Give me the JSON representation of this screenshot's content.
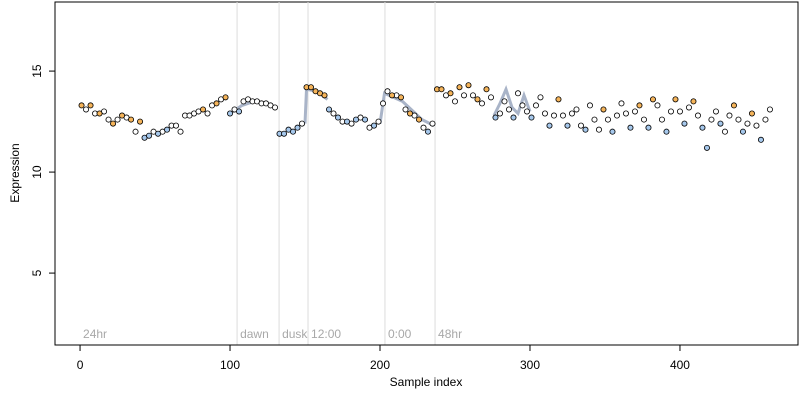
{
  "chart_data": {
    "type": "scatter",
    "xlabel": "Sample index",
    "ylabel": "Expression",
    "xlim": [
      -16.7,
      478.7
    ],
    "ylim": [
      1.44,
      18.42
    ],
    "xticks": [
      0,
      100,
      200,
      300,
      400
    ],
    "yticks": [
      5,
      10,
      15
    ],
    "annotations": [
      {
        "x": 0,
        "label": "24hr",
        "line": false
      },
      {
        "x": 104.7,
        "label": "dawn",
        "line": true
      },
      {
        "x": 132.7,
        "label": "dusk",
        "line": true
      },
      {
        "x": 152,
        "label": "12:00",
        "line": true
      },
      {
        "x": 203.3,
        "label": "0:00",
        "line": true
      },
      {
        "x": 236.7,
        "label": "48hr",
        "line": true
      }
    ],
    "trend": {
      "color": "#a9b4c8",
      "x": [
        100,
        108,
        116,
        124,
        131,
        132,
        150,
        151,
        158,
        165,
        166,
        200,
        203,
        215,
        228,
        236,
        237,
        276,
        280,
        284,
        288,
        292,
        296,
        300
      ],
      "values": [
        12.9,
        13.3,
        13.5,
        13.4,
        13.2,
        null,
        12.4,
        14.1,
        14.0,
        13.6,
        null,
        12.4,
        13.9,
        13.5,
        12.6,
        12.3,
        null,
        12.8,
        13.4,
        14.1,
        13.2,
        12.9,
        13.8,
        13.0
      ]
    },
    "series": [
      {
        "color": "#ffffff",
        "x": [
          4,
          10,
          16,
          19,
          25,
          31,
          37,
          49,
          55,
          61,
          64,
          67,
          70,
          73,
          76,
          79,
          85,
          88,
          94,
          103,
          109,
          112,
          115,
          118,
          121,
          124,
          127,
          130,
          148,
          169,
          175,
          181,
          187,
          193,
          199,
          202,
          205,
          211,
          217,
          223,
          229,
          235,
          244,
          250,
          256,
          262,
          268,
          274,
          280,
          283,
          286,
          292,
          295,
          298,
          304,
          307,
          310,
          316,
          322,
          328,
          331,
          334,
          340,
          343,
          346,
          352,
          358,
          361,
          364,
          370,
          376,
          385,
          388,
          394,
          400,
          406,
          412,
          421,
          424,
          430,
          433,
          439,
          445,
          451,
          457,
          460
        ],
        "values": [
          13.1,
          12.9,
          13.0,
          12.6,
          12.6,
          12.7,
          12.0,
          12.0,
          12.0,
          12.3,
          12.3,
          12.0,
          12.8,
          12.8,
          12.9,
          13.0,
          12.9,
          13.3,
          13.6,
          13.1,
          13.5,
          13.6,
          13.5,
          13.5,
          13.4,
          13.4,
          13.3,
          13.2,
          12.4,
          12.9,
          12.5,
          12.4,
          12.7,
          12.2,
          12.5,
          13.4,
          14.0,
          13.8,
          13.1,
          12.8,
          12.2,
          12.4,
          13.8,
          13.5,
          13.8,
          13.8,
          13.4,
          13.7,
          12.9,
          13.5,
          13.1,
          13.9,
          13.3,
          13.0,
          13.3,
          13.7,
          12.9,
          12.8,
          12.8,
          12.9,
          13.1,
          12.3,
          13.3,
          12.6,
          12.1,
          12.6,
          12.8,
          13.4,
          12.9,
          13.0,
          12.6,
          13.3,
          12.6,
          13.0,
          13.0,
          13.2,
          12.8,
          12.6,
          13.0,
          12.0,
          12.8,
          12.6,
          12.4,
          12.3,
          12.6,
          13.1
        ]
      },
      {
        "color": "#a6c8ec",
        "x": [
          43,
          46,
          52,
          58,
          100,
          106,
          133,
          136,
          139,
          142,
          145,
          166,
          172,
          178,
          184,
          190,
          196,
          232,
          277,
          289,
          301,
          313,
          325,
          337,
          355,
          367,
          379,
          391,
          403,
          415,
          418,
          427,
          442,
          454
        ],
        "values": [
          11.7,
          11.8,
          11.9,
          12.1,
          12.9,
          13.0,
          11.9,
          11.9,
          12.1,
          12.0,
          12.2,
          13.1,
          12.7,
          12.5,
          12.6,
          12.6,
          12.3,
          12.0,
          12.7,
          12.7,
          12.7,
          12.3,
          12.3,
          12.1,
          12.0,
          12.2,
          12.2,
          12.0,
          12.4,
          12.2,
          11.2,
          12.4,
          12.0,
          11.6
        ]
      },
      {
        "color": "#f5b45a",
        "x": [
          1,
          7,
          13,
          22,
          28,
          34,
          40,
          82,
          91,
          97,
          151,
          154,
          157,
          160,
          163,
          208,
          214,
          220,
          226,
          238,
          241,
          247,
          253,
          259,
          265,
          271,
          319,
          349,
          373,
          382,
          397,
          409,
          436,
          448
        ],
        "values": [
          13.3,
          13.3,
          12.9,
          12.4,
          12.8,
          12.6,
          12.5,
          13.1,
          13.4,
          13.7,
          14.2,
          14.2,
          14.0,
          13.9,
          13.8,
          13.8,
          13.7,
          12.9,
          12.6,
          14.1,
          14.1,
          13.9,
          14.2,
          14.3,
          13.6,
          14.1,
          13.6,
          13.1,
          13.3,
          13.6,
          13.6,
          13.5,
          13.3,
          12.9
        ]
      }
    ]
  }
}
